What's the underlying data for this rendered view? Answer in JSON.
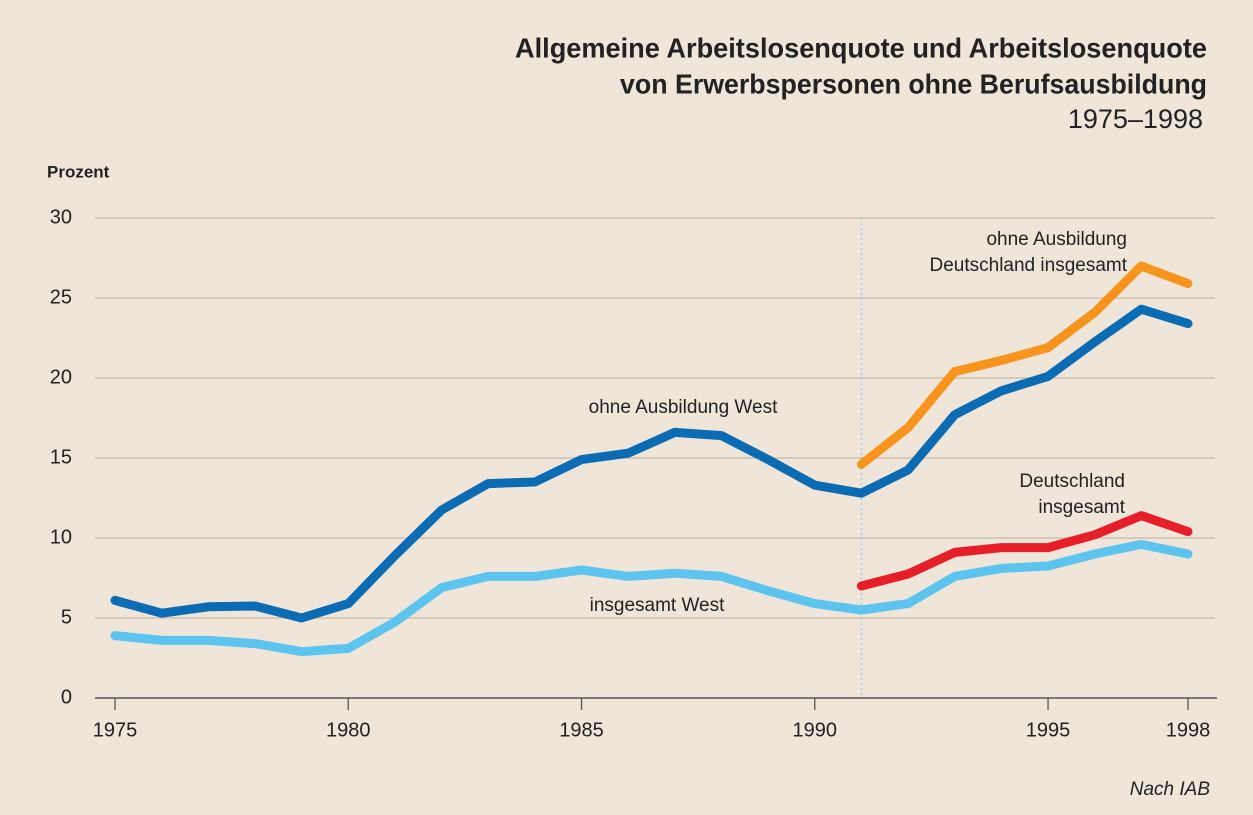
{
  "chart_data": {
    "type": "line",
    "title": [
      "Allgemeine Arbeitslosenquote und Arbeitslosenquote",
      "von Erwerbspersonen ohne Berufsausbildung"
    ],
    "subtitle": "1975–1998",
    "y_label": "Prozent",
    "source": "Nach IAB",
    "x": [
      1975,
      1976,
      1977,
      1978,
      1979,
      1980,
      1981,
      1982,
      1983,
      1984,
      1985,
      1986,
      1987,
      1988,
      1989,
      1990,
      1991,
      1992,
      1993,
      1994,
      1995,
      1996,
      1997,
      1998
    ],
    "xlim": [
      1975,
      1998
    ],
    "xticks": [
      1975,
      1980,
      1985,
      1990,
      1995,
      1998
    ],
    "ylim": [
      0,
      30
    ],
    "yticks": [
      0,
      5,
      10,
      15,
      20,
      25,
      30
    ],
    "grid": true,
    "marker_x": 1991,
    "series": [
      {
        "name": [
          "ohne Ausbildung West"
        ],
        "color": "#0b6bb3",
        "values": [
          6.1,
          5.3,
          5.7,
          5.75,
          5.0,
          5.9,
          8.9,
          11.75,
          13.4,
          13.5,
          14.9,
          15.3,
          16.6,
          16.4,
          14.9,
          13.3,
          12.8,
          14.25,
          17.7,
          19.2,
          20.1,
          22.25,
          24.3,
          23.4
        ]
      },
      {
        "name": [
          "insgesamt West"
        ],
        "color": "#5cc4ee",
        "values": [
          3.9,
          3.6,
          3.6,
          3.4,
          2.9,
          3.1,
          4.75,
          6.9,
          7.6,
          7.6,
          8.0,
          7.6,
          7.8,
          7.6,
          6.7,
          5.9,
          5.5,
          5.9,
          7.6,
          8.1,
          8.25,
          9.0,
          9.6,
          9.0
        ]
      },
      {
        "name": [
          "ohne Ausbildung",
          "Deutschland insgesamt"
        ],
        "color": "#f7941d",
        "values": [
          null,
          null,
          null,
          null,
          null,
          null,
          null,
          null,
          null,
          null,
          null,
          null,
          null,
          null,
          null,
          null,
          14.6,
          16.9,
          20.4,
          21.1,
          21.9,
          24.1,
          27.0,
          25.9
        ]
      },
      {
        "name": [
          "Deutschland",
          "insgesamt"
        ],
        "color": "#e61e2a",
        "values": [
          null,
          null,
          null,
          null,
          null,
          null,
          null,
          null,
          null,
          null,
          null,
          null,
          null,
          null,
          null,
          null,
          7.0,
          7.75,
          9.1,
          9.4,
          9.4,
          10.2,
          11.4,
          10.4
        ]
      }
    ]
  }
}
